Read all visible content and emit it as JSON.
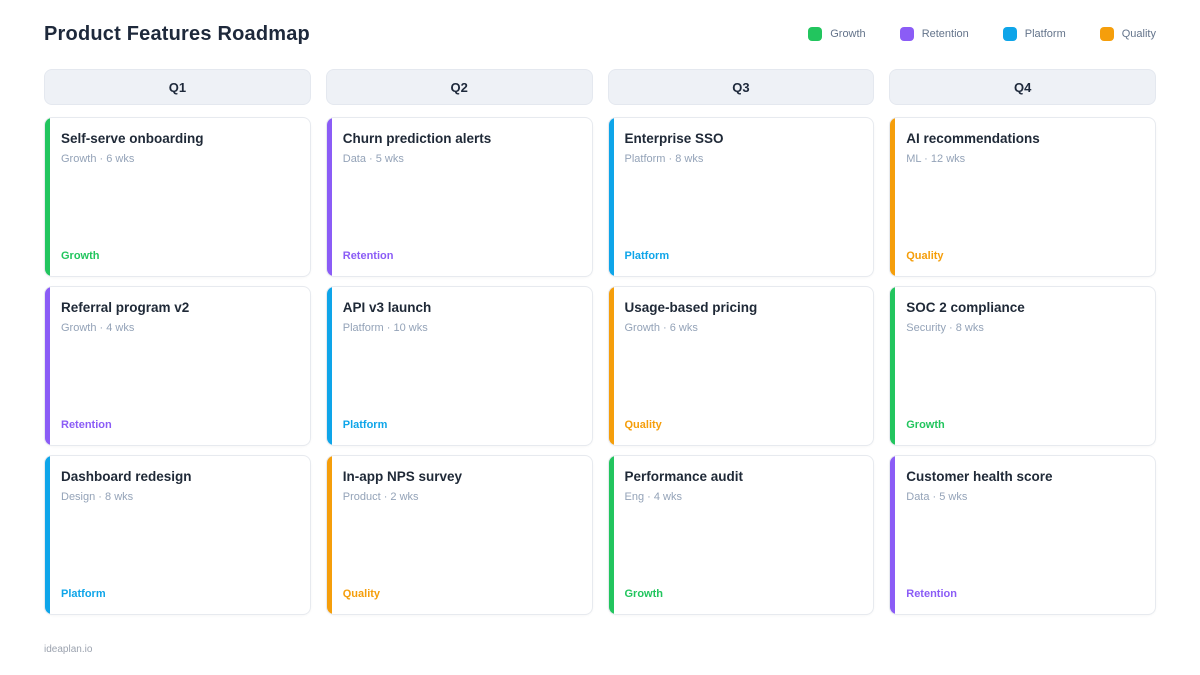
{
  "page": {
    "title": "Product Features Roadmap",
    "footer": "ideaplan.io"
  },
  "legend": [
    {
      "label": "Growth",
      "color": "#22c55e"
    },
    {
      "label": "Retention",
      "color": "#8b5cf6"
    },
    {
      "label": "Platform",
      "color": "#0ea5e9"
    },
    {
      "label": "Quality",
      "color": "#f59e0b"
    }
  ],
  "columns": [
    {
      "header": "Q1",
      "cards": [
        {
          "title": "Self-serve onboarding",
          "meta": "Growth · 6 wks",
          "tag": "Growth"
        },
        {
          "title": "Referral program v2",
          "meta": "Growth · 4 wks",
          "tag": "Retention"
        },
        {
          "title": "Dashboard redesign",
          "meta": "Design · 8 wks",
          "tag": "Platform"
        }
      ]
    },
    {
      "header": "Q2",
      "cards": [
        {
          "title": "Churn prediction alerts",
          "meta": "Data · 5 wks",
          "tag": "Retention"
        },
        {
          "title": "API v3 launch",
          "meta": "Platform · 10 wks",
          "tag": "Platform"
        },
        {
          "title": "In-app NPS survey",
          "meta": "Product · 2 wks",
          "tag": "Quality"
        }
      ]
    },
    {
      "header": "Q3",
      "cards": [
        {
          "title": "Enterprise SSO",
          "meta": "Platform · 8 wks",
          "tag": "Platform"
        },
        {
          "title": "Usage-based pricing",
          "meta": "Growth · 6 wks",
          "tag": "Quality"
        },
        {
          "title": "Performance audit",
          "meta": "Eng · 4 wks",
          "tag": "Growth"
        }
      ]
    },
    {
      "header": "Q4",
      "cards": [
        {
          "title": "AI recommendations",
          "meta": "ML · 12 wks",
          "tag": "Quality"
        },
        {
          "title": "SOC 2 compliance",
          "meta": "Security · 8 wks",
          "tag": "Growth"
        },
        {
          "title": "Customer health score",
          "meta": "Data · 5 wks",
          "tag": "Retention"
        }
      ]
    }
  ]
}
